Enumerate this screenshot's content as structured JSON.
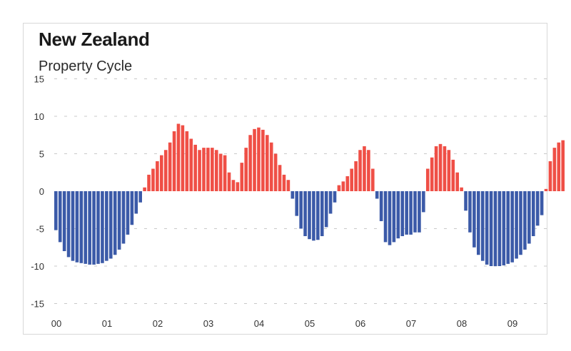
{
  "chart_data": {
    "type": "bar",
    "title": "New Zealand",
    "subtitle": "Property Cycle",
    "xlabel": "",
    "ylabel": "",
    "ylim": [
      -15,
      15
    ],
    "yticks": [
      15,
      10,
      5,
      0,
      -5,
      -10,
      -15
    ],
    "ytick_labels": [
      "15",
      "10",
      "5",
      "0",
      "-5",
      "-10",
      "-15"
    ],
    "xtick_labels": [
      "00",
      "01",
      "02",
      "03",
      "04",
      "05",
      "06",
      "07",
      "08",
      "09"
    ],
    "x_start": "2000-01",
    "frequency": "monthly",
    "grid": true,
    "colors": {
      "positive": "#ef4f46",
      "negative": "#3b5aa8",
      "grid": "#c8c8c8"
    },
    "values": [
      -5.2,
      -6.8,
      -8.0,
      -8.8,
      -9.3,
      -9.5,
      -9.6,
      -9.7,
      -9.8,
      -9.8,
      -9.7,
      -9.6,
      -9.3,
      -9.0,
      -8.5,
      -7.8,
      -7.0,
      -5.8,
      -4.5,
      -3.0,
      -1.5,
      0.5,
      2.2,
      3.0,
      4.0,
      4.8,
      5.5,
      6.5,
      8.0,
      9.0,
      8.8,
      8.0,
      7.0,
      6.2,
      5.5,
      5.8,
      5.8,
      5.8,
      5.5,
      5.0,
      4.8,
      2.5,
      1.5,
      1.2,
      3.8,
      5.8,
      7.5,
      8.3,
      8.5,
      8.2,
      7.5,
      6.5,
      5.0,
      3.5,
      2.2,
      1.5,
      -1.0,
      -3.3,
      -5.0,
      -6.0,
      -6.4,
      -6.6,
      -6.5,
      -6.0,
      -4.8,
      -3.0,
      -1.5,
      0.8,
      1.3,
      2.0,
      3.0,
      4.0,
      5.5,
      6.0,
      5.5,
      3.0,
      -1.0,
      -4.0,
      -6.8,
      -7.2,
      -6.8,
      -6.3,
      -6.0,
      -5.8,
      -5.8,
      -5.5,
      -5.5,
      -2.8,
      3.0,
      4.5,
      6.0,
      6.3,
      6.0,
      5.5,
      4.2,
      2.5,
      0.5,
      -2.6,
      -5.5,
      -7.5,
      -8.5,
      -9.3,
      -9.8,
      -10.0,
      -10.0,
      -10.0,
      -9.9,
      -9.7,
      -9.5,
      -9.0,
      -8.5,
      -7.8,
      -7.0,
      -6.0,
      -4.6,
      -3.2,
      0.3,
      4.0,
      5.8,
      6.5,
      6.8
    ]
  }
}
